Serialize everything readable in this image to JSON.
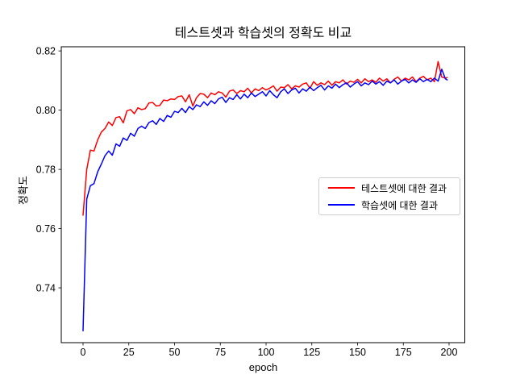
{
  "chart": {
    "title": "테스트셋과 학습셋의 정확도 비교",
    "xlabel": "epoch",
    "ylabel": "정확도"
  },
  "legend": {
    "entries": [
      {
        "label": "테스트셋에 대한 결과",
        "color": "#ff0000"
      },
      {
        "label": "학습셋에 대한 결과",
        "color": "#0000ff"
      }
    ]
  },
  "chart_data": {
    "type": "line",
    "title": "테스트셋과 학습셋의 정확도 비교",
    "xlabel": "epoch",
    "ylabel": "정확도",
    "xlim": [
      -11.9,
      208.6
    ],
    "ylim": [
      0.7215,
      0.8214
    ],
    "xticks": [
      0,
      25,
      50,
      75,
      100,
      125,
      150,
      175,
      200
    ],
    "yticks": [
      0.74,
      0.76,
      0.78,
      0.8,
      0.82
    ],
    "grid": false,
    "legend_position": "center right",
    "x": [
      0,
      2,
      4,
      6,
      8,
      10,
      12,
      14,
      16,
      18,
      20,
      22,
      24,
      26,
      28,
      30,
      32,
      34,
      36,
      38,
      40,
      42,
      44,
      46,
      48,
      50,
      52,
      54,
      56,
      58,
      60,
      62,
      64,
      66,
      68,
      70,
      72,
      74,
      76,
      78,
      80,
      82,
      84,
      86,
      88,
      90,
      92,
      94,
      96,
      98,
      100,
      102,
      104,
      106,
      108,
      110,
      112,
      114,
      116,
      118,
      120,
      122,
      124,
      126,
      128,
      130,
      132,
      134,
      136,
      138,
      140,
      142,
      144,
      146,
      148,
      150,
      152,
      154,
      156,
      158,
      160,
      162,
      164,
      166,
      168,
      170,
      172,
      174,
      176,
      178,
      180,
      182,
      184,
      186,
      188,
      190,
      192,
      194,
      196,
      198,
      199
    ],
    "series": [
      {
        "name": "테스트셋에 대한 결과",
        "color": "#ff0000",
        "values": [
          0.7645,
          0.78,
          0.7865,
          0.7862,
          0.79,
          0.7926,
          0.7938,
          0.796,
          0.7948,
          0.7975,
          0.7978,
          0.7957,
          0.7998,
          0.8002,
          0.7988,
          0.8008,
          0.8002,
          0.8005,
          0.8024,
          0.8026,
          0.8014,
          0.8016,
          0.8034,
          0.8032,
          0.8038,
          0.8036,
          0.8046,
          0.8048,
          0.8028,
          0.8052,
          0.8014,
          0.8042,
          0.8056,
          0.8054,
          0.8042,
          0.8058,
          0.8052,
          0.8062,
          0.8058,
          0.8044,
          0.8064,
          0.8068,
          0.8056,
          0.8066,
          0.8062,
          0.8074,
          0.8058,
          0.8072,
          0.8066,
          0.8076,
          0.8068,
          0.8074,
          0.8082,
          0.8064,
          0.8078,
          0.8076,
          0.8086,
          0.8072,
          0.8082,
          0.8078,
          0.8088,
          0.8092,
          0.8074,
          0.8096,
          0.8084,
          0.8092,
          0.8086,
          0.8098,
          0.8084,
          0.8096,
          0.8092,
          0.8102,
          0.8088,
          0.8098,
          0.8094,
          0.8104,
          0.8092,
          0.8106,
          0.8096,
          0.8102,
          0.8094,
          0.8108,
          0.8098,
          0.8106,
          0.8092,
          0.8104,
          0.8112,
          0.8098,
          0.8108,
          0.8102,
          0.8112,
          0.8096,
          0.8108,
          0.8114,
          0.8102,
          0.8108,
          0.8096,
          0.8164,
          0.8112,
          0.8108,
          0.811
        ]
      },
      {
        "name": "학습셋에 대한 결과",
        "color": "#0000ff",
        "values": [
          0.7255,
          0.77,
          0.7745,
          0.7752,
          0.7792,
          0.7818,
          0.7846,
          0.7862,
          0.7848,
          0.7886,
          0.7878,
          0.7906,
          0.7898,
          0.7922,
          0.7912,
          0.7938,
          0.7946,
          0.7938,
          0.7958,
          0.7964,
          0.7952,
          0.7972,
          0.7962,
          0.7982,
          0.7976,
          0.7996,
          0.7992,
          0.8006,
          0.7992,
          0.8012,
          0.8002,
          0.8018,
          0.8012,
          0.8028,
          0.8016,
          0.8032,
          0.8022,
          0.8038,
          0.8044,
          0.8026,
          0.8042,
          0.8036,
          0.8052,
          0.8038,
          0.8054,
          0.8042,
          0.8058,
          0.8046,
          0.8054,
          0.8062,
          0.8048,
          0.8066,
          0.8052,
          0.8042,
          0.8062,
          0.8072,
          0.8056,
          0.8068,
          0.8074,
          0.8058,
          0.8072,
          0.8064,
          0.8078,
          0.8066,
          0.8076,
          0.8084,
          0.8068,
          0.8082,
          0.8074,
          0.8088,
          0.8076,
          0.8086,
          0.8092,
          0.8078,
          0.8088,
          0.8096,
          0.8082,
          0.8092,
          0.8086,
          0.8098,
          0.8088,
          0.8096,
          0.8084,
          0.8098,
          0.8092,
          0.8102,
          0.8088,
          0.8098,
          0.8104,
          0.8092,
          0.8102,
          0.8094,
          0.8106,
          0.8096,
          0.8104,
          0.8096,
          0.8108,
          0.8098,
          0.8138,
          0.8106,
          0.8102
        ]
      }
    ]
  }
}
